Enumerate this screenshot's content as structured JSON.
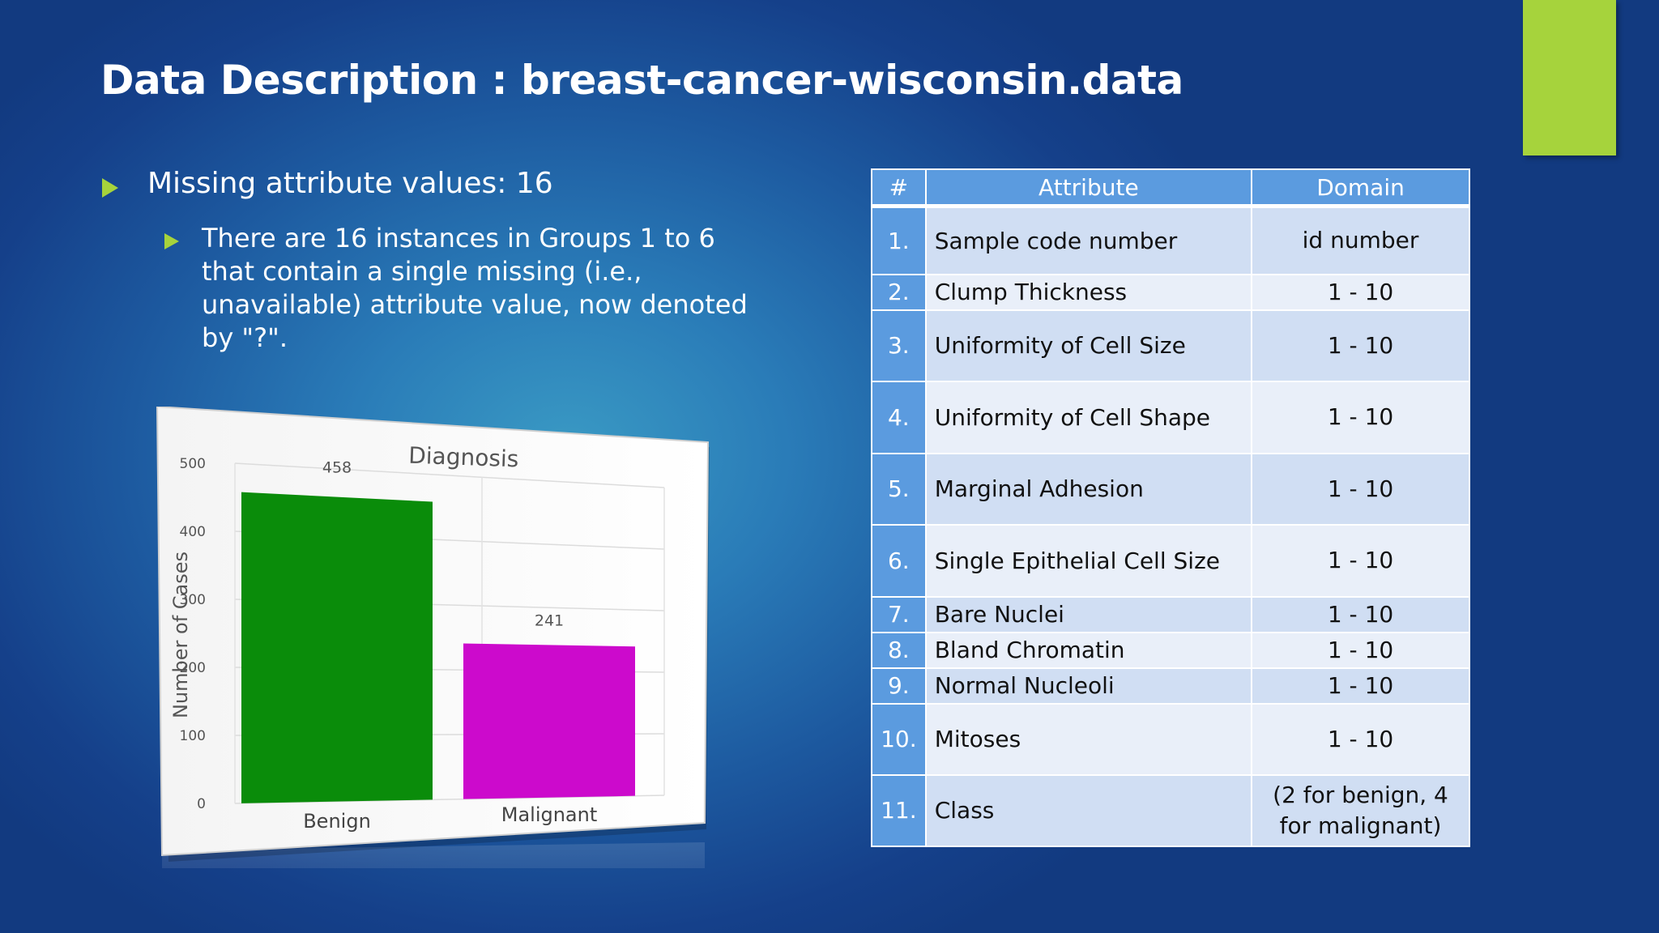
{
  "slide": {
    "title": "Data Description : breast-cancer-wisconsin.data",
    "accent_color": "#a6d33c"
  },
  "bullets": {
    "level1": "Missing attribute values: 16",
    "level2": "There are 16 instances in Groups 1 to 6 that contain a single missing (i.e., unavailable) attribute value, now denoted by \"?\"."
  },
  "table": {
    "headers": [
      "#",
      "Attribute",
      "Domain"
    ],
    "rows": [
      {
        "num": "1.",
        "attribute": "Sample code number",
        "domain": "id number"
      },
      {
        "num": "2.",
        "attribute": "Clump Thickness",
        "domain": "1 - 10"
      },
      {
        "num": "3.",
        "attribute": "Uniformity of Cell Size",
        "domain": "1 - 10"
      },
      {
        "num": "4.",
        "attribute": "Uniformity of Cell Shape",
        "domain": "1 - 10"
      },
      {
        "num": "5.",
        "attribute": "Marginal Adhesion",
        "domain": "1 - 10"
      },
      {
        "num": "6.",
        "attribute": "Single Epithelial Cell Size",
        "domain": "1 - 10"
      },
      {
        "num": "7.",
        "attribute": "Bare Nuclei",
        "domain": "1 - 10"
      },
      {
        "num": "8.",
        "attribute": "Bland Chromatin",
        "domain": "1 - 10"
      },
      {
        "num": "9.",
        "attribute": "Normal Nucleoli",
        "domain": "1 - 10"
      },
      {
        "num": "10.",
        "attribute": "Mitoses",
        "domain": "1 - 10"
      },
      {
        "num": "11.",
        "attribute": "Class",
        "domain": "(2 for benign, 4 for malignant)"
      }
    ]
  },
  "chart_data": {
    "type": "bar",
    "title": "Diagnosis",
    "categories": [
      "Benign",
      "Malignant"
    ],
    "values": [
      458,
      241
    ],
    "data_labels": [
      "458",
      "241"
    ],
    "colors": [
      "#0a8c0a",
      "#cc0acc"
    ],
    "xlabel": "",
    "ylabel": "Number of Cases",
    "ylim": [
      0,
      500
    ],
    "yticks": [
      "0",
      "100",
      "200",
      "300",
      "400",
      "500"
    ],
    "grid": true
  }
}
